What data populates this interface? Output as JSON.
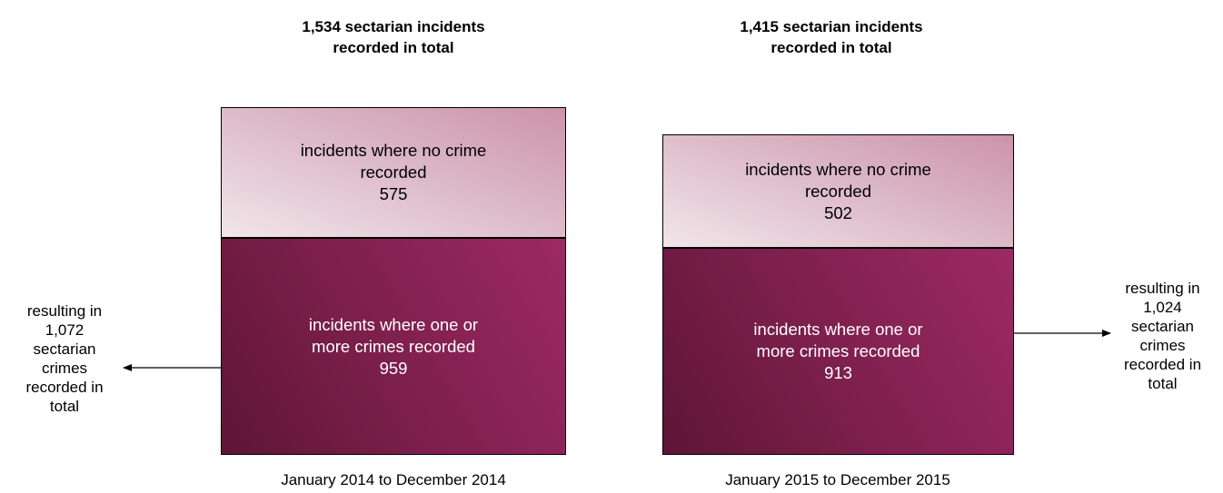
{
  "chart_data": [
    {
      "type": "bar",
      "title": [
        "1,534 sectarian incidents",
        "recorded in total"
      ],
      "categories": [
        "incidents where no crime recorded",
        "incidents where one or more crimes recorded"
      ],
      "values": [
        575,
        959
      ],
      "xlabel": "January 2014 to December 2014",
      "annotation": [
        "resulting in",
        "1,072",
        "sectarian",
        "crimes",
        "recorded in",
        "total"
      ]
    },
    {
      "type": "bar",
      "title": [
        "1,415 sectarian incidents",
        "recorded in total"
      ],
      "categories": [
        "incidents where no crime recorded",
        "incidents where one or more crimes recorded"
      ],
      "values": [
        502,
        913
      ],
      "xlabel": "January 2015 to December 2015",
      "annotation": [
        "resulting in",
        "1,024",
        "sectarian",
        "crimes",
        "recorded in",
        "total"
      ]
    }
  ],
  "labels": {
    "nocrime": [
      "incidents where no crime",
      "recorded"
    ],
    "crime": [
      "incidents where one or",
      "more crimes recorded"
    ]
  },
  "colors": {
    "nocrime": "#dcb6c6",
    "crime": "#86224f"
  }
}
